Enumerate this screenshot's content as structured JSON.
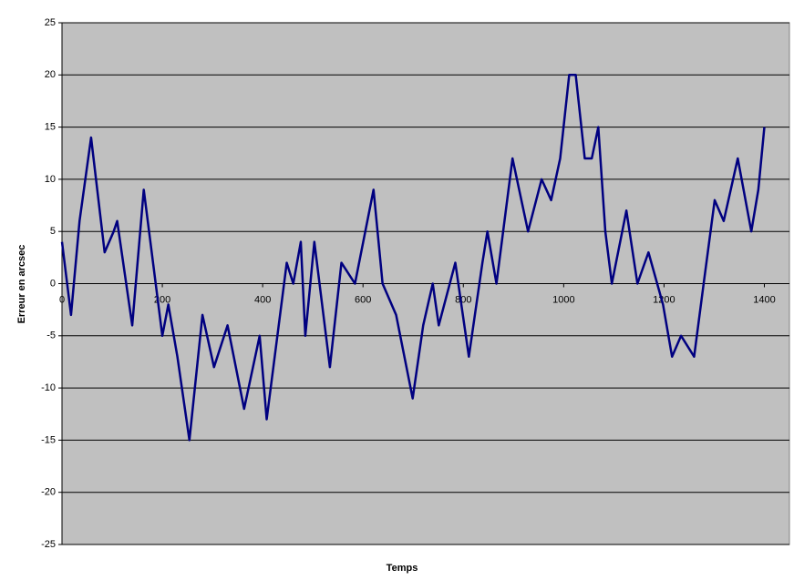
{
  "chart_data": {
    "type": "line",
    "x_label": "Temps",
    "y_label": "Erreur en arcsec",
    "x": [
      0,
      18,
      35,
      58,
      85,
      103,
      110,
      140,
      163,
      200,
      212,
      230,
      254,
      280,
      303,
      330,
      363,
      394,
      408,
      448,
      461,
      476,
      485,
      503,
      534,
      557,
      584,
      621,
      639,
      666,
      699,
      720,
      739,
      751,
      784,
      811,
      838,
      848,
      866,
      898,
      929,
      956,
      975,
      993,
      1011,
      1024,
      1042,
      1056,
      1069,
      1083,
      1096,
      1125,
      1147,
      1169,
      1198,
      1216,
      1234,
      1260,
      1279,
      1301,
      1319,
      1347,
      1374,
      1388,
      1400
    ],
    "series": [
      {
        "name": "Erreur",
        "color": "#000080",
        "values": [
          4,
          -3,
          6,
          14,
          3,
          5,
          6,
          -4,
          9,
          -5,
          -2,
          -7,
          -15,
          -3,
          -8,
          -4,
          -12,
          -5,
          -13,
          2,
          0,
          4,
          -5,
          4,
          -8,
          2,
          0,
          9,
          0,
          -3,
          -11,
          -4,
          0,
          -4,
          2,
          -7,
          2,
          5,
          0,
          12,
          5,
          10,
          8,
          12,
          20,
          20,
          12,
          12,
          15,
          5,
          0,
          7,
          0,
          3,
          -2,
          -7,
          -5,
          -7,
          0,
          8,
          6,
          12,
          5,
          9,
          15
        ]
      }
    ],
    "xlim": [
      0,
      1450
    ],
    "ylim": [
      -25,
      25
    ],
    "xticks": [
      0,
      200,
      400,
      600,
      800,
      1000,
      1200,
      1400
    ],
    "yticks": [
      -25,
      -20,
      -15,
      -10,
      -5,
      0,
      5,
      10,
      15,
      20,
      25
    ],
    "grid": true,
    "background": "#c0c0c0"
  }
}
